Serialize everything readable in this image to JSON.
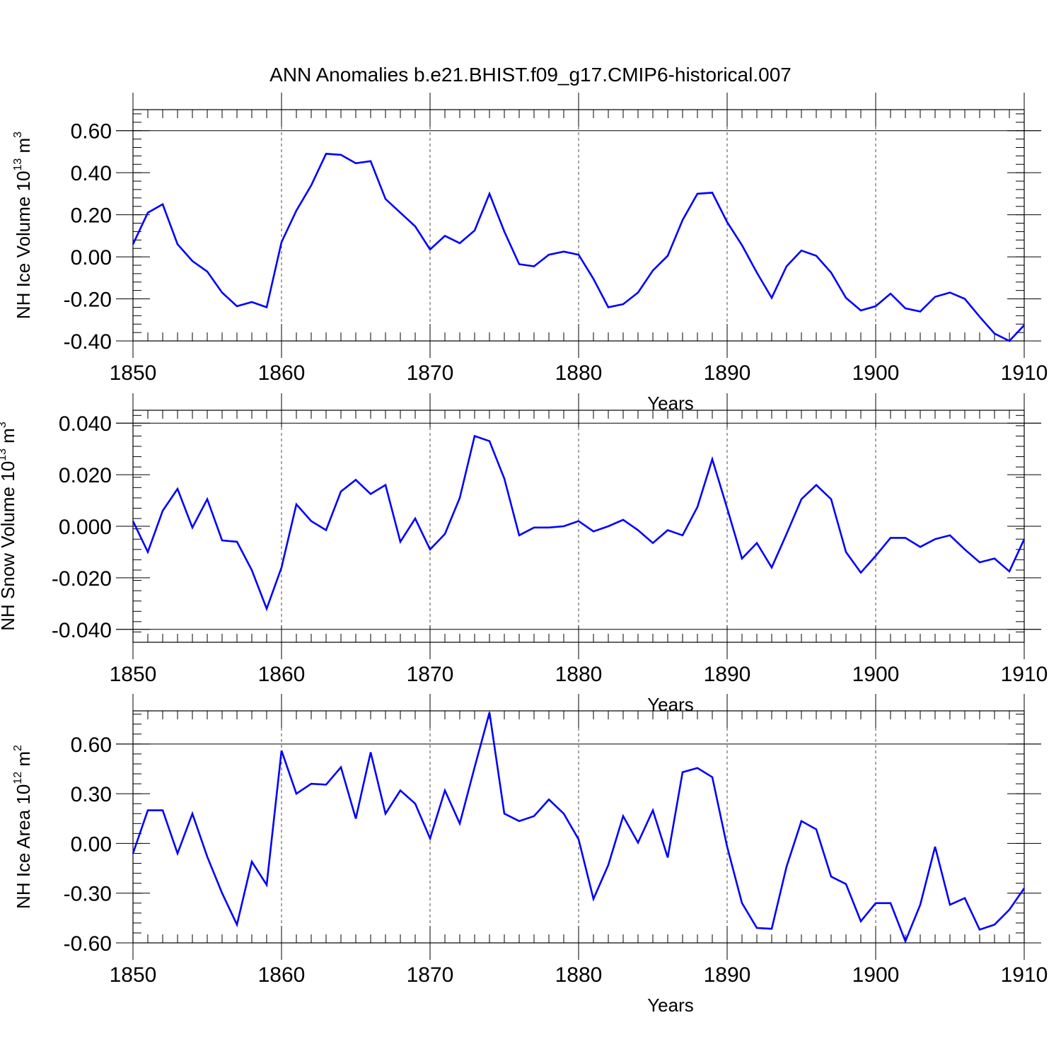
{
  "title": "ANN Anomalies b.e21.BHIST.f09_g17.CMIP6-historical.007",
  "colors": {
    "series": "#0000ff",
    "axis": "#000000",
    "background": "#ffffff"
  },
  "chart_data": [
    {
      "type": "line",
      "name": "ice-volume",
      "ylabel_main": "NH Ice Volume 10",
      "ylabel_exp": "13",
      "ylabel_unit": "m",
      "ylabel_unit_exp": "3",
      "xlabel": "Years",
      "xlim": [
        1850,
        1910
      ],
      "ylim": [
        -0.4,
        0.7
      ],
      "yticks": [
        -0.4,
        -0.2,
        0.0,
        0.2,
        0.4,
        0.6
      ],
      "ytick_labels": [
        "-0.40",
        "-0.20",
        "0.00",
        "0.20",
        "0.40",
        "0.60"
      ],
      "xticks": [
        1850,
        1860,
        1870,
        1880,
        1890,
        1900,
        1910
      ],
      "xtick_labels": [
        "1850",
        "1860",
        "1870",
        "1880",
        "1890",
        "1900",
        "1910"
      ],
      "x_start": 1850,
      "values": [
        0.06,
        0.21,
        0.25,
        0.06,
        -0.02,
        -0.07,
        -0.17,
        -0.235,
        -0.215,
        -0.24,
        0.07,
        0.22,
        0.34,
        0.49,
        0.485,
        0.445,
        0.455,
        0.275,
        0.21,
        0.145,
        0.035,
        0.1,
        0.065,
        0.125,
        0.3,
        0.12,
        -0.035,
        -0.045,
        0.01,
        0.025,
        0.01,
        -0.105,
        -0.24,
        -0.225,
        -0.17,
        -0.065,
        0.005,
        0.175,
        0.3,
        0.305,
        0.165,
        0.055,
        -0.075,
        -0.195,
        -0.045,
        0.03,
        0.005,
        -0.075,
        -0.195,
        -0.255,
        -0.235,
        -0.175,
        -0.245,
        -0.26,
        -0.19,
        -0.17,
        -0.2,
        -0.285,
        -0.365,
        -0.4,
        -0.325
      ]
    },
    {
      "type": "line",
      "name": "snow-volume",
      "ylabel_main": "NH Snow Volume 10",
      "ylabel_exp": "13",
      "ylabel_unit": "m",
      "ylabel_unit_exp": "3",
      "xlabel": "Years",
      "xlim": [
        1850,
        1910
      ],
      "ylim": [
        -0.045,
        0.045
      ],
      "yticks": [
        -0.04,
        -0.02,
        0.0,
        0.02,
        0.04
      ],
      "ytick_labels": [
        "-0.040",
        "-0.020",
        "0.000",
        "0.020",
        "0.040"
      ],
      "xticks": [
        1850,
        1860,
        1870,
        1880,
        1890,
        1900,
        1910
      ],
      "xtick_labels": [
        "1850",
        "1860",
        "1870",
        "1880",
        "1890",
        "1900",
        "1910"
      ],
      "x_start": 1850,
      "values": [
        0.002,
        -0.01,
        0.006,
        0.0145,
        -0.0005,
        0.0105,
        -0.0055,
        -0.006,
        -0.017,
        -0.032,
        -0.016,
        0.0085,
        0.002,
        -0.0015,
        0.0135,
        0.018,
        0.0125,
        0.016,
        -0.006,
        0.003,
        -0.009,
        -0.003,
        0.011,
        0.035,
        0.033,
        0.0185,
        -0.0035,
        -0.0005,
        -0.0005,
        0.0,
        0.002,
        -0.002,
        0.0,
        0.0025,
        -0.0015,
        -0.0065,
        -0.0015,
        -0.0035,
        0.0075,
        0.026,
        0.007,
        -0.0125,
        -0.0065,
        -0.016,
        -0.003,
        0.0105,
        0.016,
        0.0105,
        -0.01,
        -0.018,
        -0.0115,
        -0.0045,
        -0.0045,
        -0.008,
        -0.005,
        -0.0035,
        -0.009,
        -0.014,
        -0.0125,
        -0.0175,
        -0.005
      ]
    },
    {
      "type": "line",
      "name": "ice-area",
      "ylabel_main": "NH Ice Area 10",
      "ylabel_exp": "12",
      "ylabel_unit": "m",
      "ylabel_unit_exp": "2",
      "xlabel": "Years",
      "xlim": [
        1850,
        1910
      ],
      "ylim": [
        -0.6,
        0.8
      ],
      "yticks": [
        -0.6,
        -0.3,
        0.0,
        0.3,
        0.6
      ],
      "ytick_labels": [
        "-0.60",
        "-0.30",
        "0.00",
        "0.30",
        "0.60"
      ],
      "xticks": [
        1850,
        1860,
        1870,
        1880,
        1890,
        1900,
        1910
      ],
      "xtick_labels": [
        "1850",
        "1860",
        "1870",
        "1880",
        "1890",
        "1900",
        "1910"
      ],
      "x_start": 1850,
      "values": [
        -0.06,
        0.2,
        0.2,
        -0.06,
        0.18,
        -0.08,
        -0.3,
        -0.49,
        -0.11,
        -0.25,
        0.56,
        0.3,
        0.36,
        0.355,
        0.46,
        0.15,
        0.55,
        0.18,
        0.32,
        0.24,
        0.03,
        0.32,
        0.12,
        0.46,
        0.79,
        0.18,
        0.135,
        0.165,
        0.265,
        0.18,
        0.025,
        -0.335,
        -0.13,
        0.165,
        0.005,
        0.2,
        -0.085,
        0.43,
        0.455,
        0.4,
        -0.02,
        -0.36,
        -0.51,
        -0.515,
        -0.14,
        0.135,
        0.085,
        -0.2,
        -0.245,
        -0.47,
        -0.36,
        -0.36,
        -0.59,
        -0.37,
        -0.02,
        -0.37,
        -0.33,
        -0.52,
        -0.49,
        -0.4,
        -0.27
      ]
    }
  ]
}
